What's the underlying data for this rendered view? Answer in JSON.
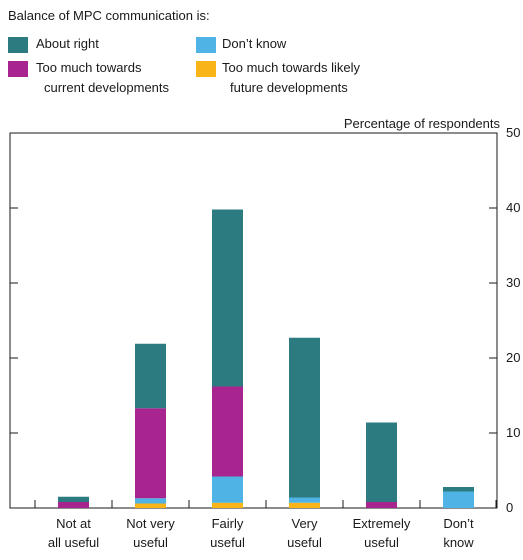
{
  "legend": {
    "title": "Balance of MPC communication is:",
    "items": [
      {
        "label_lines": [
          "About right"
        ],
        "color": "#2b7b80"
      },
      {
        "label_lines": [
          "Don’t know"
        ],
        "color": "#4fb3e6"
      },
      {
        "label_lines": [
          "Too much towards",
          "current developments"
        ],
        "color": "#a8248f"
      },
      {
        "label_lines": [
          "Too much towards likely",
          "future developments"
        ],
        "color": "#f9b418"
      }
    ]
  },
  "chart_data": {
    "type": "bar",
    "stacked": true,
    "categories": [
      [
        "Not at",
        "all useful"
      ],
      [
        "Not very",
        "useful"
      ],
      [
        "Fairly",
        "useful"
      ],
      [
        "Very",
        "useful"
      ],
      [
        "Extremely",
        "useful"
      ],
      [
        "Don’t",
        "know"
      ]
    ],
    "series": [
      {
        "name": "Too much towards likely future developments",
        "color": "#f9b418",
        "values": [
          0,
          0.6,
          0.7,
          0.7,
          0,
          0
        ]
      },
      {
        "name": "Don’t know",
        "color": "#4fb3e6",
        "values": [
          0,
          0.7,
          3.5,
          0.7,
          0,
          2.2
        ]
      },
      {
        "name": "Too much towards current developments",
        "color": "#a8248f",
        "values": [
          0.8,
          12.0,
          12.0,
          0,
          0.8,
          0
        ]
      },
      {
        "name": "About right",
        "color": "#2b7b80",
        "values": [
          0.7,
          8.6,
          23.6,
          21.3,
          10.6,
          0.6
        ]
      }
    ],
    "ylabel": "Percentage of respondents",
    "ylim": [
      0,
      50
    ],
    "yticks": [
      0,
      10,
      20,
      30,
      40,
      50
    ],
    "left_ticks": [
      10,
      20,
      30,
      40
    ]
  }
}
